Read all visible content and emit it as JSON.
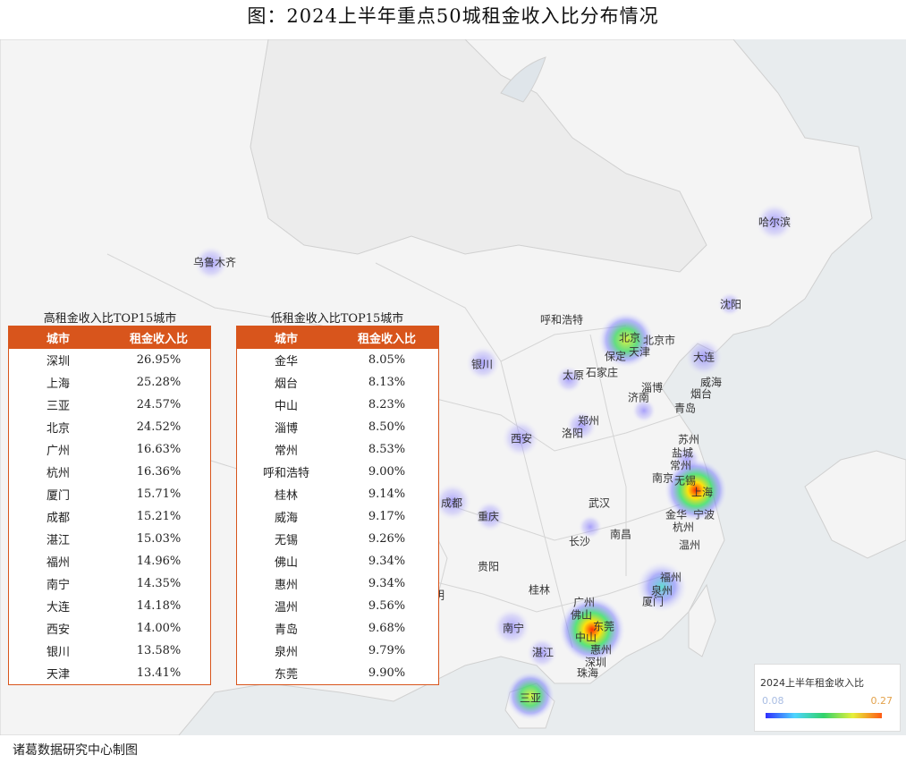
{
  "title": "图：2024上半年重点50城租金收入比分布情况",
  "source": "诸葛数据研究中心制图",
  "legend": {
    "title": "2024上半年租金收入比",
    "min": "0.08",
    "max": "0.27",
    "min_value": 0.08,
    "max_value": 0.27
  },
  "colors": {
    "header_bg": "#d8551c",
    "map_bg": "#efefef"
  },
  "high_table": {
    "title": "高租金收入比TOP15城市",
    "col_city": "城市",
    "col_ratio": "租金收入比",
    "rows": [
      {
        "city": "深圳",
        "ratio": "26.95%"
      },
      {
        "city": "上海",
        "ratio": "25.28%"
      },
      {
        "city": "三亚",
        "ratio": "24.57%"
      },
      {
        "city": "北京",
        "ratio": "24.52%"
      },
      {
        "city": "广州",
        "ratio": "16.63%"
      },
      {
        "city": "杭州",
        "ratio": "16.36%"
      },
      {
        "city": "厦门",
        "ratio": "15.71%"
      },
      {
        "city": "成都",
        "ratio": "15.21%"
      },
      {
        "city": "湛江",
        "ratio": "15.03%"
      },
      {
        "city": "福州",
        "ratio": "14.96%"
      },
      {
        "city": "南宁",
        "ratio": "14.35%"
      },
      {
        "city": "大连",
        "ratio": "14.18%"
      },
      {
        "city": "西安",
        "ratio": "14.00%"
      },
      {
        "city": "银川",
        "ratio": "13.58%"
      },
      {
        "city": "天津",
        "ratio": "13.41%"
      }
    ]
  },
  "low_table": {
    "title": "低租金收入比TOP15城市",
    "col_city": "城市",
    "col_ratio": "租金收入比",
    "rows": [
      {
        "city": "金华",
        "ratio": "8.05%"
      },
      {
        "city": "烟台",
        "ratio": "8.13%"
      },
      {
        "city": "中山",
        "ratio": "8.23%"
      },
      {
        "city": "淄博",
        "ratio": "8.50%"
      },
      {
        "city": "常州",
        "ratio": "8.53%"
      },
      {
        "city": "呼和浩特",
        "ratio": "9.00%"
      },
      {
        "city": "桂林",
        "ratio": "9.14%"
      },
      {
        "city": "威海",
        "ratio": "9.17%"
      },
      {
        "city": "无锡",
        "ratio": "9.26%"
      },
      {
        "city": "佛山",
        "ratio": "9.34%"
      },
      {
        "city": "惠州",
        "ratio": "9.34%"
      },
      {
        "city": "温州",
        "ratio": "9.56%"
      },
      {
        "city": "青岛",
        "ratio": "9.68%"
      },
      {
        "city": "泉州",
        "ratio": "9.79%"
      },
      {
        "city": "东莞",
        "ratio": "9.90%"
      }
    ]
  },
  "map_labels": [
    "哈尔滨",
    "沈阳",
    "乌鲁木齐",
    "呼和浩特",
    "北京",
    "北京市",
    "天津",
    "保定",
    "大连",
    "威海",
    "烟台",
    "太原",
    "石家庄",
    "淄博",
    "济南",
    "青岛",
    "银川",
    "郑州",
    "洛阳",
    "西安",
    "苏州",
    "盐城",
    "常州",
    "南京",
    "无锡",
    "上海",
    "宁波",
    "金华",
    "杭州",
    "温州",
    "成都",
    "重庆",
    "武汉",
    "长沙",
    "南昌",
    "贵阳",
    "福州",
    "泉州",
    "厦门",
    "桂林",
    "昆明",
    "广州",
    "佛山",
    "东莞",
    "中山",
    "惠州",
    "深圳",
    "珠海",
    "南宁",
    "湛江",
    "三亚"
  ]
}
